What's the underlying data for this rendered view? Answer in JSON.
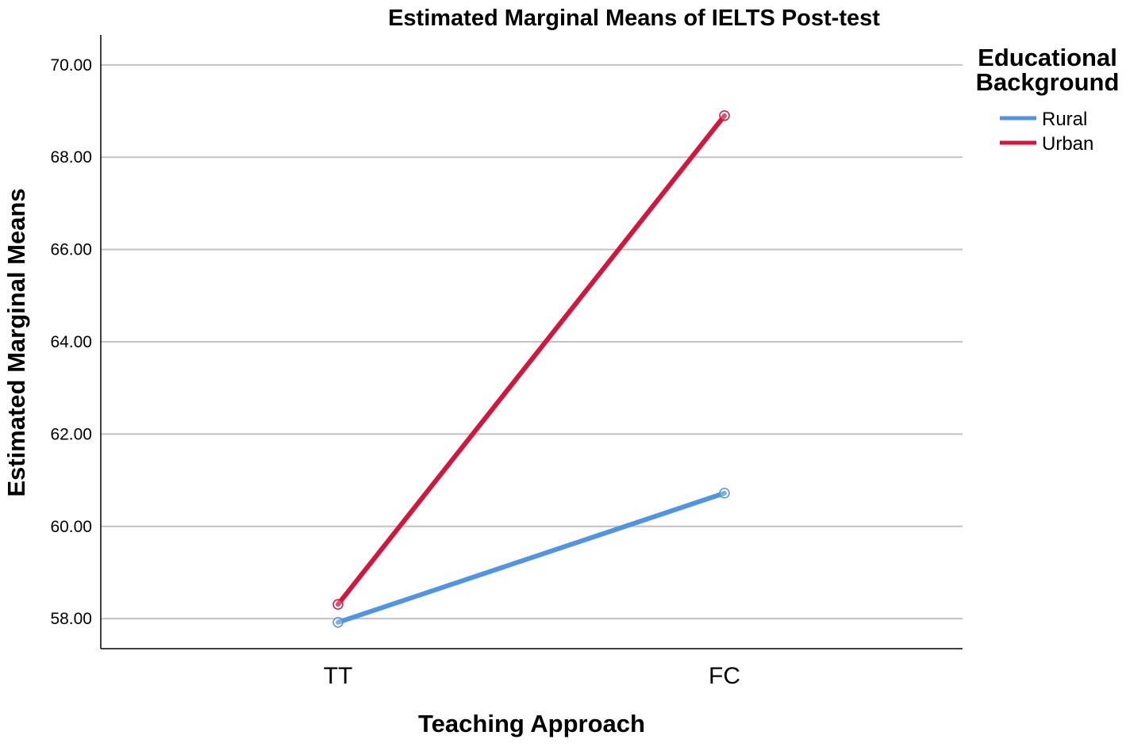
{
  "chart_data": {
    "type": "line",
    "title": "Estimated Marginal Means of IELTS Post-test",
    "xlabel": "Teaching Approach",
    "ylabel": "Estimated Marginal Means",
    "categories": [
      "TT",
      "FC"
    ],
    "series": [
      {
        "name": "Rural",
        "values": [
          57.92,
          60.72
        ],
        "color": "#5194e0"
      },
      {
        "name": "Urban",
        "values": [
          58.31,
          68.9
        ],
        "color": "#d1173e"
      }
    ],
    "ylim": [
      57.35,
      70.65
    ],
    "yticks": [
      58,
      60,
      62,
      64,
      66,
      68,
      70
    ],
    "ytick_labels": [
      "58.00",
      "60.00",
      "62.00",
      "64.00",
      "66.00",
      "68.00",
      "70.00"
    ],
    "grid": true,
    "legend": {
      "title_lines": [
        "Educational",
        "Background"
      ],
      "position": "right"
    }
  }
}
